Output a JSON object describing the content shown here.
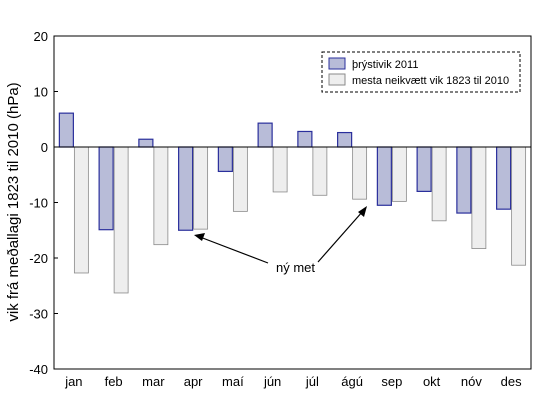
{
  "chart_data": {
    "type": "bar",
    "ylabel": "vik frá meðallagi 1823 til 2010 (hPa)",
    "ylim": [
      -40,
      20
    ],
    "yticks": [
      -40,
      -30,
      -20,
      -10,
      0,
      10,
      20
    ],
    "grid": false,
    "legend_position": "top-right",
    "categories": [
      "jan",
      "feb",
      "mar",
      "apr",
      "maí",
      "jún",
      "júl",
      "ágú",
      "sep",
      "okt",
      "nóv",
      "des"
    ],
    "series": [
      {
        "name": "þrýstivik 2011",
        "color": "#b8bcd8",
        "edge": "#2a2f9c",
        "values": [
          6.1,
          -14.9,
          1.4,
          -15.0,
          -4.4,
          4.3,
          2.8,
          2.6,
          -10.5,
          -8.0,
          -11.9,
          -11.2
        ]
      },
      {
        "name": "mesta neikvætt vik 1823 til 2010",
        "color": "#eeeeee",
        "edge": "#8a8a8a",
        "values": [
          -22.7,
          -26.3,
          -17.6,
          -14.8,
          -11.6,
          -8.1,
          -8.7,
          -9.4,
          -9.8,
          -13.3,
          -18.3,
          -21.3
        ]
      }
    ],
    "annotation": {
      "text": "ný met",
      "arrow_targets": [
        "apr",
        "sep"
      ]
    }
  }
}
